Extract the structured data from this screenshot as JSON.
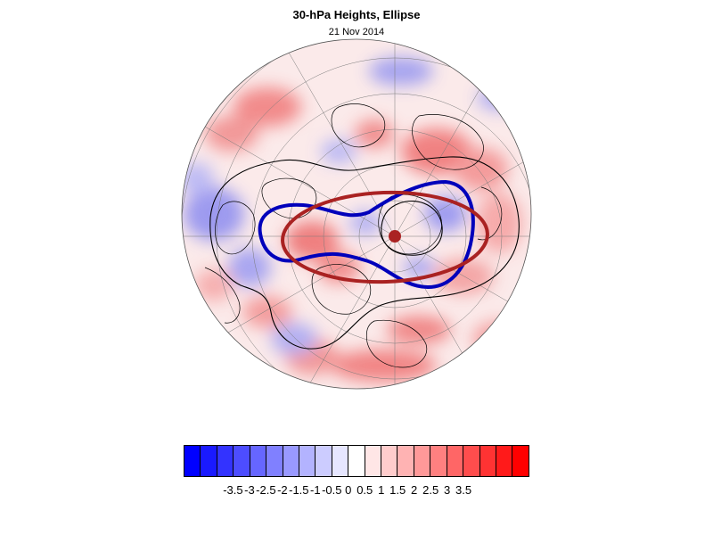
{
  "header": {
    "title": "30-hPa Heights, Ellipse",
    "subtitle": "21 Nov 2014"
  },
  "map": {
    "projection": "north-polar-stereographic",
    "anomaly_field": "30-hPa height anomaly",
    "contour_color": "#000000",
    "vortex_edge_color": "#0000bb",
    "ellipse_color": "#aa2222",
    "ellipse_center_color": "#aa2222"
  },
  "colorbar": {
    "colors": [
      "#0000ff",
      "#1a1aff",
      "#3333ff",
      "#4d4dff",
      "#6666ff",
      "#8080ff",
      "#9999ff",
      "#b3b3ff",
      "#ccccff",
      "#e6e6ff",
      "#ffffff",
      "#ffe6e6",
      "#ffcccc",
      "#ffb3b3",
      "#ff9999",
      "#ff8080",
      "#ff6666",
      "#ff4d4d",
      "#ff3333",
      "#ff1a1a",
      "#ff0000"
    ],
    "tick_labels": [
      "-3.5",
      "-3",
      "-2.5",
      "-2",
      "-1.5",
      "-1",
      "-0.5",
      "0",
      "0.5",
      "1",
      "1.5",
      "2",
      "2.5",
      "3",
      "3.5"
    ]
  }
}
